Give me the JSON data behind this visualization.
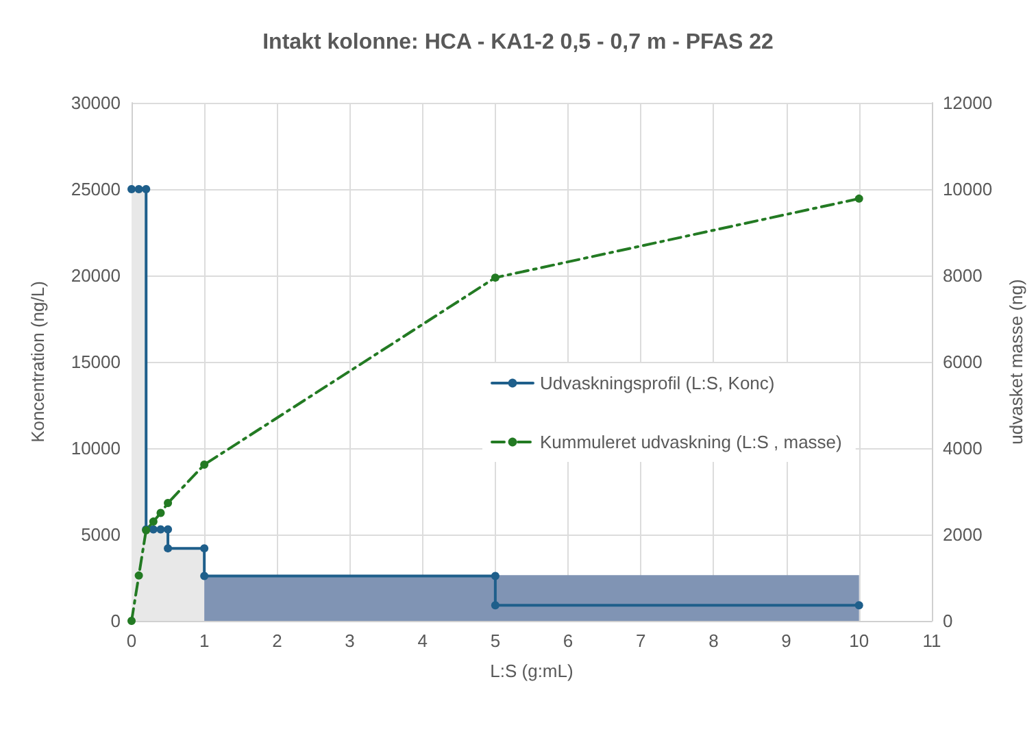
{
  "chart_data": {
    "type": "line",
    "title": "Intakt kolonne: HCA - KA1-2 0,5 - 0,7 m - PFAS 22",
    "xlabel": "L:S (g:mL)",
    "ylabel": "Koncentration (ng/L)",
    "y2label": "udvasket masse (ng)",
    "series": [
      {
        "type": "area",
        "color": "#e8e8e8",
        "x": [
          0,
          0.2,
          0.2,
          0.5,
          0.5,
          1
        ],
        "values": [
          25000,
          25000,
          5300,
          5300,
          4200,
          4200
        ],
        "marker": "none"
      },
      {
        "type": "area",
        "color": "#8094b4",
        "x": [
          1,
          10
        ],
        "values": [
          2650,
          2650
        ],
        "marker": "none"
      },
      {
        "type": "line",
        "name": "Udvaskningsprofil (L:S, Konc)",
        "color": "#1f5f8b",
        "x": [
          0,
          0.1,
          0.2,
          0.2,
          0.3,
          0.4,
          0.5,
          0.5,
          1,
          1,
          5,
          5,
          10
        ],
        "values": [
          25000,
          25000,
          25000,
          5300,
          5300,
          5300,
          5300,
          4200,
          4200,
          2600,
          2600,
          900,
          900
        ],
        "marker": "circle",
        "line_style": "solid"
      },
      {
        "type": "line",
        "name": "Kummuleret udvaskning (L:S , masse)",
        "axis": "y2",
        "color": "#237a23",
        "x": [
          0,
          0.1,
          0.2,
          0.3,
          0.4,
          0.5,
          1,
          5,
          10
        ],
        "values": [
          0,
          1050,
          2100,
          2300,
          2500,
          2730,
          3620,
          7950,
          9780
        ],
        "marker": "circle",
        "line_style": "dashed"
      }
    ],
    "xlim": [
      0,
      11
    ],
    "xticks": [
      0,
      1,
      2,
      3,
      4,
      5,
      6,
      7,
      8,
      9,
      10,
      11
    ],
    "ylim": [
      0,
      30000
    ],
    "yticks": [
      0,
      5000,
      10000,
      15000,
      20000,
      25000,
      30000
    ],
    "y2lim": [
      0,
      12000
    ],
    "y2ticks": [
      0,
      2000,
      4000,
      6000,
      8000,
      10000,
      12000
    ],
    "grid": true,
    "legend": "right"
  }
}
